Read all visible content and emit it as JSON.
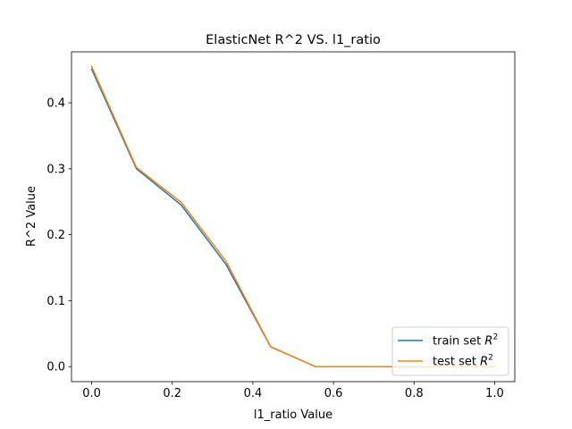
{
  "chart_data": {
    "type": "line",
    "title": "ElasticNet R^2 VS. l1_ratio",
    "xlabel": "l1_ratio Value",
    "ylabel": "R^2 Value",
    "xlim": [
      -0.05,
      1.05
    ],
    "ylim": [
      -0.0227,
      0.4773
    ],
    "xticks": [
      0.0,
      0.2,
      0.4,
      0.6,
      0.8,
      1.0
    ],
    "xtick_labels": [
      "0.0",
      "0.2",
      "0.4",
      "0.6",
      "0.8",
      "1.0"
    ],
    "yticks": [
      0.0,
      0.1,
      0.2,
      0.3,
      0.4
    ],
    "ytick_labels": [
      "0.0",
      "0.1",
      "0.2",
      "0.3",
      "0.4"
    ],
    "grid": false,
    "legend_position": "lower right",
    "x": [
      0.0,
      0.1111,
      0.2222,
      0.3333,
      0.4444,
      0.5556,
      0.6667,
      0.7778,
      0.8889,
      1.0
    ],
    "series": [
      {
        "name": "train set R2",
        "legend_base": "train set ",
        "legend_math": "R",
        "legend_sup": "2",
        "color": "#1f77b4",
        "values": [
          0.451,
          0.3,
          0.245,
          0.155,
          0.03,
          0.0,
          0.0,
          0.0,
          0.0,
          0.0
        ]
      },
      {
        "name": "test set R2",
        "legend_base": "test set ",
        "legend_math": "R",
        "legend_sup": "2",
        "color": "#ff7f0e",
        "values": [
          0.455,
          0.302,
          0.249,
          0.16,
          0.03,
          0.0,
          0.0,
          0.0,
          0.0,
          0.0
        ]
      }
    ]
  }
}
